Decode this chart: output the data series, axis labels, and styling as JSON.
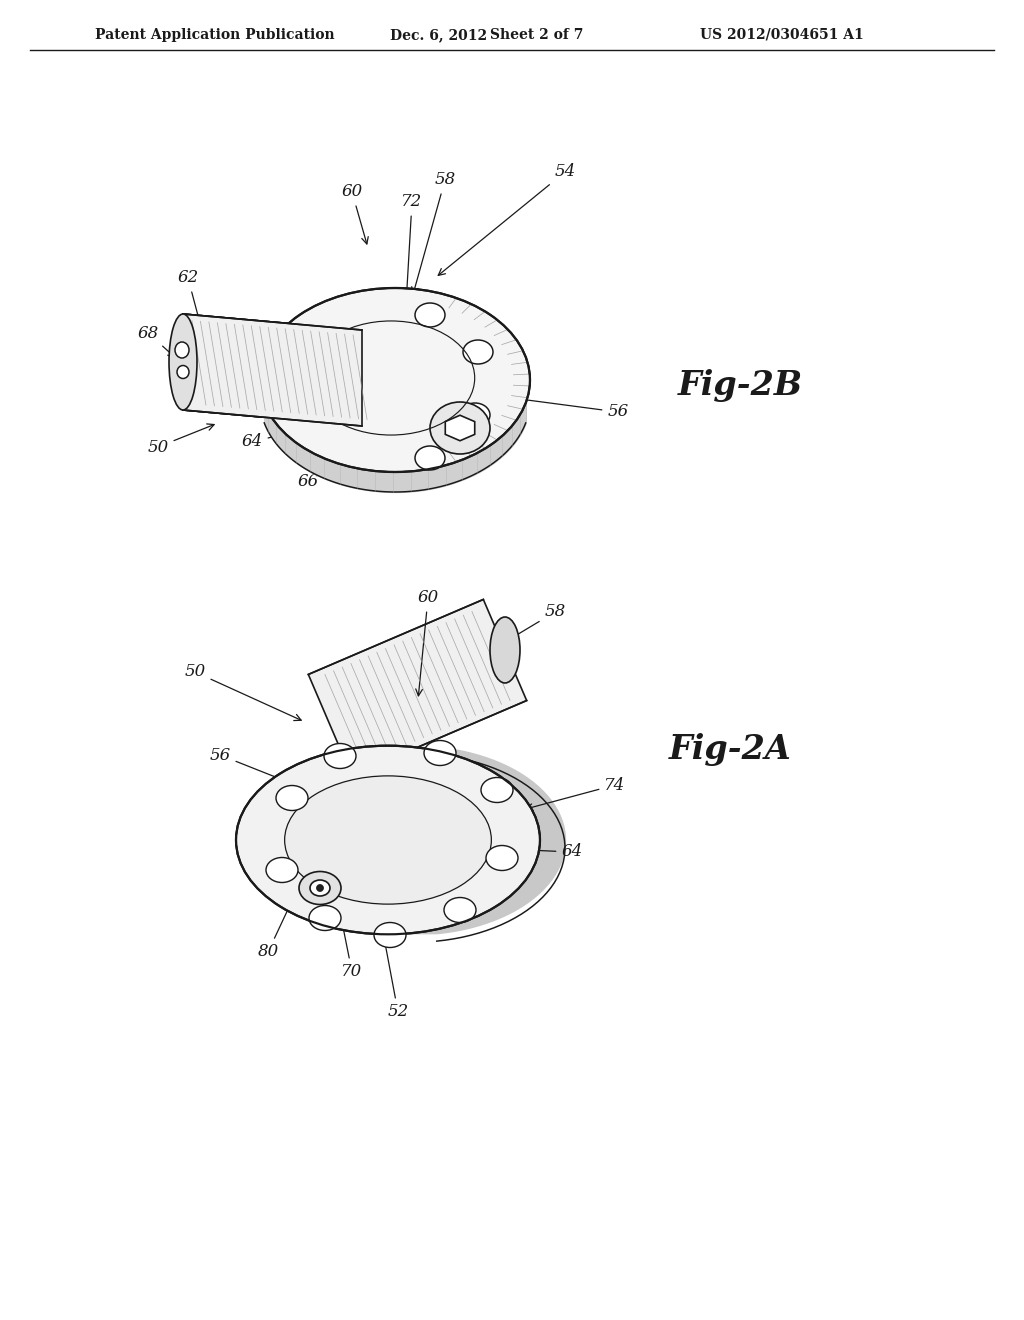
{
  "background_color": "#ffffff",
  "header_text": "Patent Application Publication",
  "header_date": "Dec. 6, 2012",
  "header_sheet": "Sheet 2 of 7",
  "header_patent": "US 2012/0304651 A1",
  "fig2b_label": "Fig-2B",
  "fig2a_label": "Fig-2A",
  "line_color": "#1a1a1a",
  "annotation_color": "#1a1a1a",
  "hatch_color": "#1a1a1a"
}
